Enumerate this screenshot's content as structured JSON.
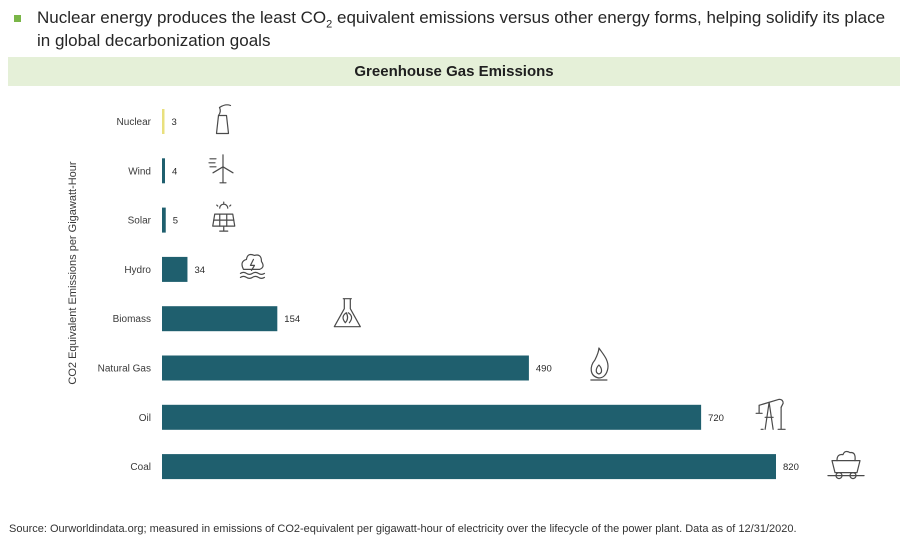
{
  "headline": {
    "pre": "Nuclear energy produces the least CO",
    "sub": "2",
    "post": " equivalent emissions versus other energy forms, helping solidify its place in global decarbonization goals"
  },
  "source_note": "Source: Ourworldindata.org; measured in emissions of CO2-equivalent per gigawatt-hour of electricity over the lifecycle of the power plant. Data as of 12/31/2020.",
  "colors": {
    "bar": "#1f5f6e",
    "nuclear_bar": "#e9e07e",
    "title_band": "#e5f0d8",
    "bullet": "#7ab648"
  },
  "chart_data": {
    "type": "bar",
    "orientation": "horizontal",
    "title": "Greenhouse Gas Emissions",
    "ylabel": "CO2 Equivalent Emissions per Gigawatt-Hour",
    "xlabel": "",
    "categories": [
      "Nuclear",
      "Wind",
      "Solar",
      "Hydro",
      "Biomass",
      "Natural Gas",
      "Oil",
      "Coal"
    ],
    "values": [
      3,
      4,
      5,
      34,
      154,
      490,
      720,
      820
    ],
    "icons": [
      "nuclear-plant-icon",
      "wind-turbine-icon",
      "solar-panel-icon",
      "hydro-water-icon",
      "biomass-flask-icon",
      "gas-flame-icon",
      "oil-pumpjack-icon",
      "coal-cart-icon"
    ],
    "xlim": [
      0,
      820
    ],
    "grid": false,
    "legend": "none"
  }
}
